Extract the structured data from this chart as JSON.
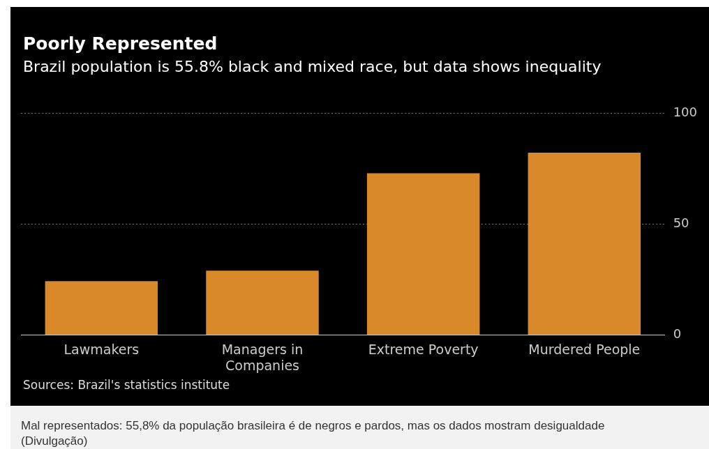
{
  "chart_data": {
    "type": "bar",
    "title": "Poorly Represented",
    "subtitle": "Brazil population is 55.8% black and mixed race, but data shows inequality",
    "categories": [
      "Lawmakers",
      "Managers in Companies",
      "Extreme Poverty",
      "Murdered People"
    ],
    "values": [
      24.3,
      29,
      73,
      82.3
    ],
    "color": "#d9892a",
    "ylim": [
      0,
      100
    ],
    "yticks": [
      0,
      50,
      100
    ],
    "grid": "y",
    "annotations": [
      "Sources: Brazil's statistics institute",
      "Mal representados: 55,8% da população brasileira é de negros e pardos, mas os dados mostram desigualdade (Divulgação)"
    ]
  }
}
